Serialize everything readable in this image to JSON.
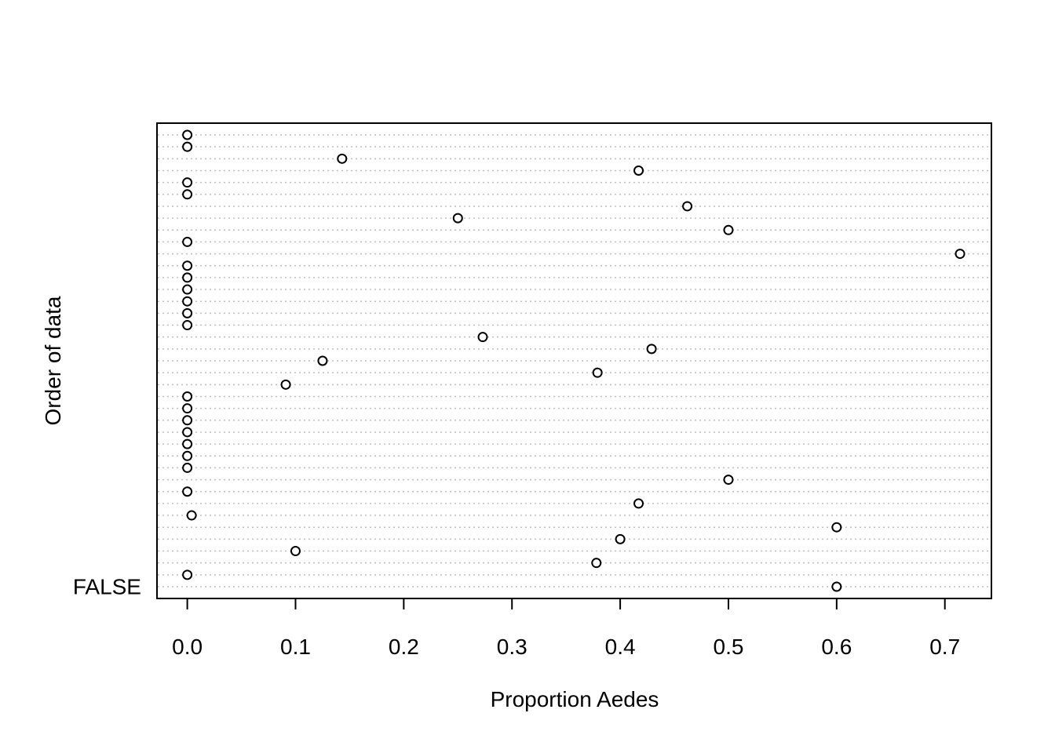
{
  "chart_data": {
    "type": "scatter",
    "subtype": "dotchart",
    "xlabel": "Proportion Aedes",
    "ylabel": "Order of data",
    "y_tick_labels": [
      "FALSE"
    ],
    "x_ticks": [
      0.0,
      0.1,
      0.2,
      0.3,
      0.4,
      0.5,
      0.6,
      0.7
    ],
    "x_tick_labels": [
      "0.0",
      "0.1",
      "0.2",
      "0.3",
      "0.4",
      "0.5",
      "0.6",
      "0.7"
    ],
    "xlim": [
      -0.028,
      0.743
    ],
    "grid": "dotted horizontal",
    "values_bottom_to_top": [
      0.6,
      0.0,
      0.378,
      0.1,
      0.4,
      0.6,
      0.004,
      0.417,
      0.0,
      0.5,
      0.0,
      0.0,
      0.0,
      0.0,
      0.0,
      0.0,
      0.0,
      0.091,
      0.379,
      0.125,
      0.429,
      0.273,
      0.0,
      0.0,
      0.0,
      0.0,
      0.0,
      0.0,
      0.714,
      0.0,
      0.5,
      0.25,
      0.462,
      0.0,
      0.0,
      0.417,
      0.143,
      0.0,
      0.0
    ]
  }
}
